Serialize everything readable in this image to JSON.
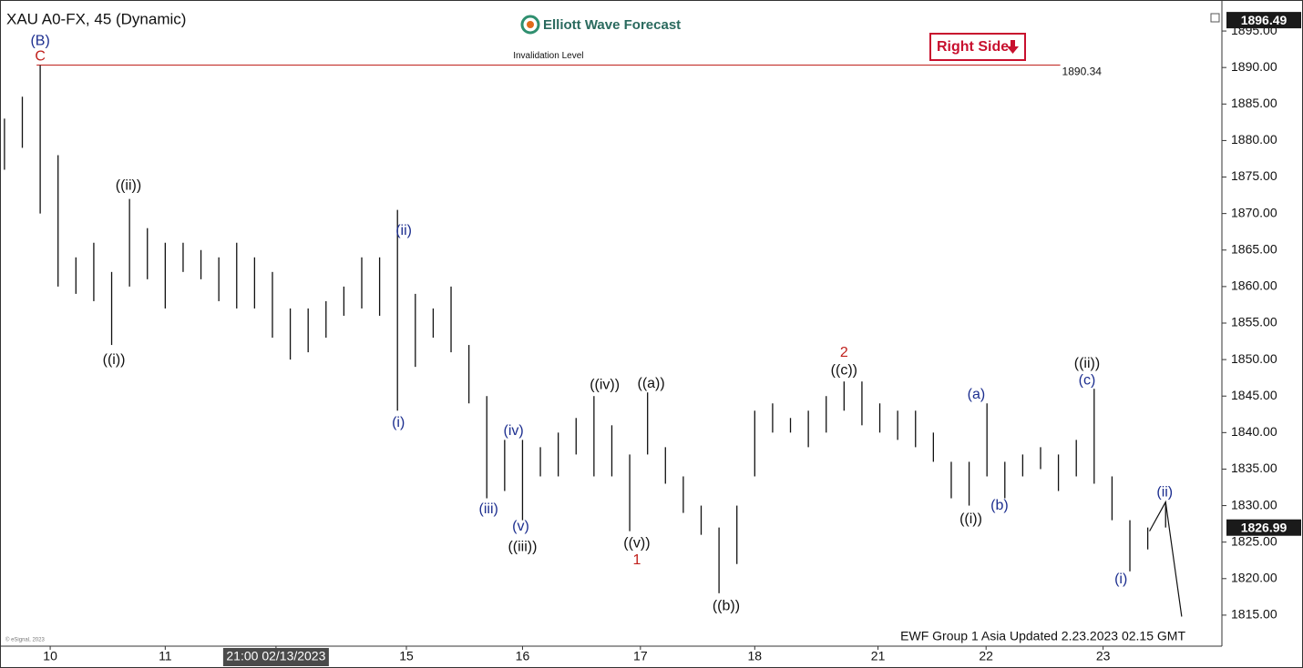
{
  "chart_data": {
    "type": "ohlc",
    "title": "XAU A0-FX, 45 (Dynamic)",
    "brand": "Elliott Wave Forecast",
    "badge": "Right Side",
    "footer": "EWF Group 1 Asia Updated 2.23.2023 02.15 GMT",
    "copyright": "© eSignal, 2023",
    "color": "#111111",
    "xlim": [
      -0.25,
      68.1
    ],
    "ylim": [
      1811.0,
      1898.0
    ],
    "xticks": [
      {
        "value": 2.56,
        "label": "10"
      },
      {
        "value": 9.0,
        "label": "11"
      },
      {
        "value": 15.2,
        "label": "21:00 02/13/2023"
      },
      {
        "value": 22.5,
        "label": "15"
      },
      {
        "value": 29.0,
        "label": "16"
      },
      {
        "value": 35.6,
        "label": "17"
      },
      {
        "value": 42.0,
        "label": "18"
      },
      {
        "value": 48.9,
        "label": "21"
      },
      {
        "value": 54.95,
        "label": "22"
      },
      {
        "value": 61.5,
        "label": "23"
      }
    ],
    "yticks": [
      {
        "value": 1815,
        "label": "1815.00"
      },
      {
        "value": 1820,
        "label": "1820.00"
      },
      {
        "value": 1825,
        "label": "1825.00"
      },
      {
        "value": 1830,
        "label": "1830.00"
      },
      {
        "value": 1835,
        "label": "1835.00"
      },
      {
        "value": 1840,
        "label": "1840.00"
      },
      {
        "value": 1845,
        "label": "1845.00"
      },
      {
        "value": 1850,
        "label": "1850.00"
      },
      {
        "value": 1855,
        "label": "1855.00"
      },
      {
        "value": 1860,
        "label": "1860.00"
      },
      {
        "value": 1865,
        "label": "1865.00"
      },
      {
        "value": 1870,
        "label": "1870.00"
      },
      {
        "value": 1875,
        "label": "1875.00"
      },
      {
        "value": 1880,
        "label": "1880.00"
      },
      {
        "value": 1885,
        "label": "1885.00"
      },
      {
        "value": 1890,
        "label": "1890.00"
      },
      {
        "value": 1895,
        "label": "1895.00"
      }
    ],
    "bars": {
      "x": [
        0,
        1,
        2,
        3,
        4,
        5,
        6,
        7,
        8,
        9,
        10,
        11,
        12,
        13,
        14,
        15,
        16,
        17,
        18,
        19,
        20,
        21,
        22,
        23,
        24,
        25,
        26,
        27,
        28,
        29,
        30,
        31,
        32,
        33,
        34,
        35,
        36,
        37,
        38,
        39,
        40,
        41,
        42,
        43,
        44,
        45,
        46,
        47,
        48,
        49,
        50,
        51,
        52,
        53,
        54,
        55,
        56,
        57,
        58,
        59,
        60,
        61,
        62,
        63,
        64,
        65
      ],
      "high": [
        1883,
        1886,
        1890.3,
        1878,
        1864,
        1866,
        1862,
        1872,
        1868,
        1866,
        1866,
        1865,
        1864,
        1866,
        1864,
        1862,
        1857,
        1857,
        1858,
        1860,
        1864,
        1864,
        1870.5,
        1859,
        1857,
        1860,
        1852,
        1845,
        1839,
        1839,
        1838,
        1840,
        1842,
        1845,
        1841,
        1837,
        1845.5,
        1838,
        1834,
        1830,
        1827,
        1830,
        1843,
        1844,
        1842,
        1843,
        1845,
        1847,
        1847,
        1844,
        1843,
        1843,
        1840,
        1836,
        1836,
        1844,
        1836,
        1837,
        1838,
        1837,
        1839,
        1846,
        1834,
        1828,
        1827,
        1830.5
      ],
      "low": [
        1876,
        1879,
        1870,
        1860,
        1859,
        1858,
        1852,
        1860,
        1861,
        1857,
        1862,
        1861,
        1858,
        1857,
        1857,
        1853,
        1850,
        1851,
        1853,
        1856,
        1857,
        1856,
        1843,
        1849,
        1853,
        1851,
        1844,
        1831,
        1832,
        1828,
        1834,
        1834,
        1837,
        1834,
        1834,
        1826.5,
        1837,
        1833,
        1829,
        1826,
        1818,
        1822,
        1834,
        1840,
        1840,
        1838,
        1840,
        1843,
        1841,
        1840,
        1839,
        1838,
        1836,
        1831,
        1830,
        1834,
        1831,
        1834,
        1835,
        1832,
        1834,
        1833,
        1828,
        1821,
        1824,
        1827
      ]
    },
    "projection": {
      "x": [
        64.1,
        65.0,
        65.9
      ],
      "values": [
        1826.5,
        1830.5,
        1814.8
      ],
      "color": "#111111"
    },
    "invalidation": {
      "label": "Invalidation Level",
      "value": 1890.34,
      "x": [
        1.8,
        59.1
      ],
      "color": "#c0201c"
    },
    "price_tags": [
      1896.49,
      1826.99
    ],
    "annotations": [
      {
        "text": "(B)",
        "x": 2.0,
        "y": 1893.6,
        "color": "#1c2e8f"
      },
      {
        "text": "C",
        "x": 2.0,
        "y": 1891.5,
        "color": "#c0201c"
      },
      {
        "text": "((ii))",
        "x": 6.94,
        "y": 1873.8,
        "color": "#111111"
      },
      {
        "text": "((i))",
        "x": 6.13,
        "y": 1849.9,
        "color": "#111111"
      },
      {
        "text": "(ii)",
        "x": 22.35,
        "y": 1867.6,
        "color": "#1c2e8f"
      },
      {
        "text": "(i)",
        "x": 22.05,
        "y": 1841.3,
        "color": "#1c2e8f"
      },
      {
        "text": "(iii)",
        "x": 27.1,
        "y": 1829.5,
        "color": "#1c2e8f"
      },
      {
        "text": "(iv)",
        "x": 28.5,
        "y": 1840.2,
        "color": "#1c2e8f"
      },
      {
        "text": "(v)",
        "x": 28.9,
        "y": 1827.1,
        "color": "#1c2e8f"
      },
      {
        "text": "((iii))",
        "x": 29.0,
        "y": 1824.3,
        "color": "#111111"
      },
      {
        "text": "((iv))",
        "x": 33.6,
        "y": 1846.5,
        "color": "#111111"
      },
      {
        "text": "((a))",
        "x": 36.2,
        "y": 1846.7,
        "color": "#111111"
      },
      {
        "text": "((v))",
        "x": 35.4,
        "y": 1824.8,
        "color": "#111111"
      },
      {
        "text": "1",
        "x": 35.4,
        "y": 1822.5,
        "color": "#c0201c"
      },
      {
        "text": "((b))",
        "x": 40.4,
        "y": 1816.2,
        "color": "#111111"
      },
      {
        "text": "2",
        "x": 47.0,
        "y": 1850.9,
        "color": "#c0201c"
      },
      {
        "text": "((c))",
        "x": 47.0,
        "y": 1848.5,
        "color": "#111111"
      },
      {
        "text": "(a)",
        "x": 54.4,
        "y": 1845.2,
        "color": "#1c2e8f"
      },
      {
        "text": "(b)",
        "x": 55.7,
        "y": 1830.0,
        "color": "#1c2e8f"
      },
      {
        "text": "((i))",
        "x": 54.1,
        "y": 1828.1,
        "color": "#111111"
      },
      {
        "text": "((ii))",
        "x": 60.6,
        "y": 1849.4,
        "color": "#111111"
      },
      {
        "text": "(c)",
        "x": 60.6,
        "y": 1847.1,
        "color": "#1c2e8f"
      },
      {
        "text": "(ii)",
        "x": 64.95,
        "y": 1831.8,
        "color": "#1c2e8f"
      },
      {
        "text": "(i)",
        "x": 62.5,
        "y": 1819.9,
        "color": "#1c2e8f"
      }
    ]
  }
}
